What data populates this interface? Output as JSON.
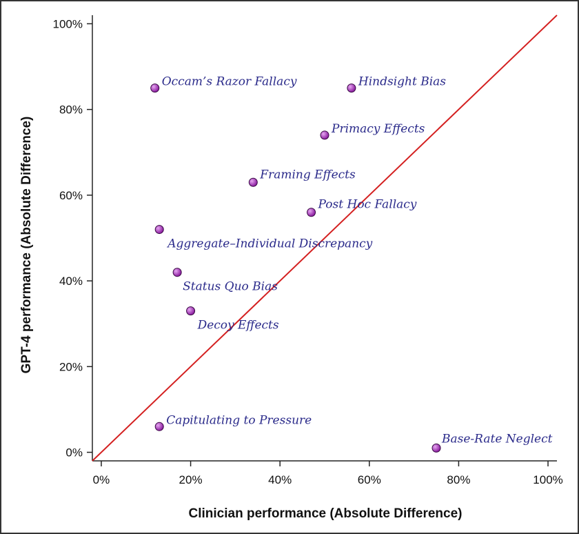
{
  "chart_data": {
    "type": "scatter",
    "xlabel": "Clinician performance (Absolute Difference)",
    "ylabel": "GPT-4 performance (Absolute Difference)",
    "xlim": [
      -2,
      102
    ],
    "ylim": [
      -2,
      102
    ],
    "x_ticks": [
      0,
      20,
      40,
      60,
      80,
      100
    ],
    "y_ticks": [
      0,
      20,
      40,
      60,
      80,
      100
    ],
    "x_tick_labels": [
      "0%",
      "20%",
      "40%",
      "60%",
      "80%",
      "100%"
    ],
    "y_tick_labels": [
      "0%",
      "20%",
      "40%",
      "60%",
      "80%",
      "100%"
    ],
    "diagonal_line": {
      "from": [
        -2,
        -2
      ],
      "to": [
        102,
        102
      ],
      "color": "#d42020"
    },
    "point_color": "#8a1c9e",
    "points": [
      {
        "label": "Occam’s Razor Fallacy",
        "x": 12,
        "y": 85
      },
      {
        "label": "Hindsight Bias",
        "x": 56,
        "y": 85
      },
      {
        "label": "Primacy Effects",
        "x": 50,
        "y": 74
      },
      {
        "label": "Framing Effects",
        "x": 34,
        "y": 63
      },
      {
        "label": "Post Hoc Fallacy",
        "x": 47,
        "y": 56
      },
      {
        "label": "Aggregate–Individual Discrepancy",
        "x": 13,
        "y": 52
      },
      {
        "label": "Status Quo Bias",
        "x": 17,
        "y": 42
      },
      {
        "label": "Decoy Effects",
        "x": 20,
        "y": 33
      },
      {
        "label": "Capitulating to Pressure",
        "x": 13,
        "y": 6
      },
      {
        "label": "Base-Rate Neglect",
        "x": 75,
        "y": 1
      }
    ]
  }
}
